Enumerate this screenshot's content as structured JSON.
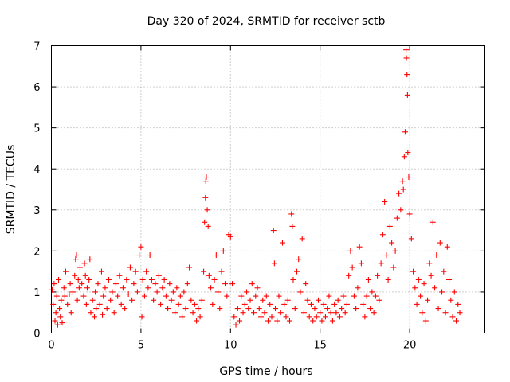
{
  "colors": {
    "series": "#ff0000",
    "grid": "#a0a0a0",
    "frame": "#000000"
  },
  "chart_data": {
    "type": "scatter",
    "title": "Day 320 of 2024, SRMTID for receiver sctb",
    "xlabel": "GPS time / hours",
    "ylabel": "SRMTID / TECUs",
    "xlim": [
      0,
      24.2
    ],
    "ylim": [
      0,
      7
    ],
    "x_ticks": [
      0,
      5,
      10,
      15,
      20
    ],
    "y_ticks": [
      0,
      1,
      2,
      3,
      4,
      5,
      6,
      7
    ],
    "x_tick_labels": [
      "0",
      "5",
      "10",
      "15",
      "20"
    ],
    "y_tick_labels": [
      "0",
      "1",
      "2",
      "3",
      "4",
      "5",
      "6",
      "7"
    ],
    "grid": true,
    "marker": "plus",
    "series": [
      {
        "name": "sctb",
        "points": [
          [
            0.05,
            1.05
          ],
          [
            0.1,
            0.7
          ],
          [
            0.15,
            1.2
          ],
          [
            0.2,
            0.3
          ],
          [
            0.25,
            0.5
          ],
          [
            0.3,
            0.9
          ],
          [
            0.35,
            0.2
          ],
          [
            0.4,
            1.3
          ],
          [
            0.45,
            0.6
          ],
          [
            0.5,
            0.4
          ],
          [
            0.55,
            0.8
          ],
          [
            0.6,
            0.25
          ],
          [
            0.7,
            1.1
          ],
          [
            0.75,
            0.9
          ],
          [
            0.8,
            1.5
          ],
          [
            0.9,
            0.7
          ],
          [
            1.0,
            0.95
          ],
          [
            1.05,
            1.2
          ],
          [
            1.1,
            0.5
          ],
          [
            1.2,
            1.0
          ],
          [
            1.3,
            1.4
          ],
          [
            1.35,
            1.8
          ],
          [
            1.4,
            1.9
          ],
          [
            1.45,
            0.8
          ],
          [
            1.5,
            1.3
          ],
          [
            1.55,
            1.1
          ],
          [
            1.6,
            1.6
          ],
          [
            1.7,
            1.2
          ],
          [
            1.8,
            0.9
          ],
          [
            1.85,
            1.7
          ],
          [
            1.9,
            1.4
          ],
          [
            1.95,
            0.7
          ],
          [
            2.0,
            1.1
          ],
          [
            2.1,
            1.3
          ],
          [
            2.15,
            1.8
          ],
          [
            2.2,
            0.5
          ],
          [
            2.3,
            0.8
          ],
          [
            2.4,
            0.4
          ],
          [
            2.45,
            1.0
          ],
          [
            2.5,
            0.6
          ],
          [
            2.6,
            1.2
          ],
          [
            2.7,
            0.7
          ],
          [
            2.8,
            1.5
          ],
          [
            2.85,
            0.45
          ],
          [
            2.9,
            0.9
          ],
          [
            3.0,
            1.1
          ],
          [
            3.1,
            0.6
          ],
          [
            3.2,
            1.3
          ],
          [
            3.3,
            0.8
          ],
          [
            3.4,
            1.0
          ],
          [
            3.5,
            0.5
          ],
          [
            3.6,
            1.2
          ],
          [
            3.7,
            0.9
          ],
          [
            3.8,
            1.4
          ],
          [
            3.9,
            0.7
          ],
          [
            4.0,
            1.1
          ],
          [
            4.1,
            0.6
          ],
          [
            4.2,
            1.3
          ],
          [
            4.3,
            0.95
          ],
          [
            4.4,
            1.6
          ],
          [
            4.5,
            0.8
          ],
          [
            4.6,
            1.2
          ],
          [
            4.7,
            1.5
          ],
          [
            4.8,
            1.0
          ],
          [
            4.9,
            1.9
          ],
          [
            5.0,
            2.1
          ],
          [
            5.05,
            0.4
          ],
          [
            5.1,
            1.3
          ],
          [
            5.2,
            0.9
          ],
          [
            5.3,
            1.5
          ],
          [
            5.4,
            1.1
          ],
          [
            5.5,
            1.9
          ],
          [
            5.6,
            1.3
          ],
          [
            5.7,
            0.8
          ],
          [
            5.8,
            1.2
          ],
          [
            5.9,
            1.0
          ],
          [
            6.0,
            1.4
          ],
          [
            6.1,
            0.7
          ],
          [
            6.2,
            1.1
          ],
          [
            6.3,
            1.3
          ],
          [
            6.4,
            0.9
          ],
          [
            6.5,
            0.6
          ],
          [
            6.6,
            1.2
          ],
          [
            6.7,
            0.8
          ],
          [
            6.8,
            1.0
          ],
          [
            6.9,
            0.5
          ],
          [
            7.0,
            1.1
          ],
          [
            7.1,
            0.7
          ],
          [
            7.2,
            0.9
          ],
          [
            7.3,
            0.4
          ],
          [
            7.4,
            1.0
          ],
          [
            7.5,
            0.6
          ],
          [
            7.6,
            1.2
          ],
          [
            7.7,
            1.6
          ],
          [
            7.8,
            0.8
          ],
          [
            7.9,
            0.5
          ],
          [
            8.0,
            0.7
          ],
          [
            8.1,
            0.3
          ],
          [
            8.2,
            0.6
          ],
          [
            8.3,
            0.4
          ],
          [
            8.4,
            0.8
          ],
          [
            8.5,
            1.5
          ],
          [
            8.55,
            2.7
          ],
          [
            8.6,
            3.3
          ],
          [
            8.62,
            3.7
          ],
          [
            8.65,
            3.8
          ],
          [
            8.7,
            3.0
          ],
          [
            8.75,
            2.6
          ],
          [
            8.8,
            1.4
          ],
          [
            8.9,
            1.1
          ],
          [
            9.0,
            0.7
          ],
          [
            9.1,
            1.3
          ],
          [
            9.2,
            1.9
          ],
          [
            9.3,
            1.0
          ],
          [
            9.4,
            0.6
          ],
          [
            9.5,
            1.5
          ],
          [
            9.6,
            2.0
          ],
          [
            9.7,
            1.2
          ],
          [
            9.8,
            0.9
          ],
          [
            9.9,
            2.4
          ],
          [
            10.0,
            2.35
          ],
          [
            10.1,
            1.2
          ],
          [
            10.2,
            0.4
          ],
          [
            10.3,
            0.2
          ],
          [
            10.4,
            0.6
          ],
          [
            10.5,
            0.3
          ],
          [
            10.6,
            0.9
          ],
          [
            10.7,
            0.5
          ],
          [
            10.8,
            0.7
          ],
          [
            10.9,
            1.0
          ],
          [
            11.0,
            0.6
          ],
          [
            11.1,
            0.8
          ],
          [
            11.2,
            1.2
          ],
          [
            11.3,
            0.5
          ],
          [
            11.4,
            0.9
          ],
          [
            11.5,
            1.1
          ],
          [
            11.6,
            0.6
          ],
          [
            11.7,
            0.4
          ],
          [
            11.8,
            0.8
          ],
          [
            11.9,
            0.5
          ],
          [
            12.0,
            0.9
          ],
          [
            12.1,
            0.3
          ],
          [
            12.2,
            0.7
          ],
          [
            12.3,
            0.4
          ],
          [
            12.4,
            2.5
          ],
          [
            12.45,
            1.7
          ],
          [
            12.5,
            0.6
          ],
          [
            12.6,
            0.3
          ],
          [
            12.7,
            0.9
          ],
          [
            12.8,
            0.5
          ],
          [
            12.9,
            2.2
          ],
          [
            13.0,
            0.7
          ],
          [
            13.1,
            0.4
          ],
          [
            13.2,
            0.8
          ],
          [
            13.3,
            0.3
          ],
          [
            13.4,
            2.9
          ],
          [
            13.45,
            2.6
          ],
          [
            13.5,
            1.3
          ],
          [
            13.6,
            0.6
          ],
          [
            13.7,
            1.5
          ],
          [
            13.8,
            1.8
          ],
          [
            13.9,
            1.0
          ],
          [
            14.0,
            2.3
          ],
          [
            14.1,
            0.5
          ],
          [
            14.2,
            1.2
          ],
          [
            14.3,
            0.8
          ],
          [
            14.4,
            0.4
          ],
          [
            14.5,
            0.7
          ],
          [
            14.6,
            0.3
          ],
          [
            14.7,
            0.6
          ],
          [
            14.8,
            0.4
          ],
          [
            14.9,
            0.8
          ],
          [
            15.0,
            0.5
          ],
          [
            15.1,
            0.3
          ],
          [
            15.2,
            0.7
          ],
          [
            15.3,
            0.4
          ],
          [
            15.4,
            0.6
          ],
          [
            15.5,
            0.9
          ],
          [
            15.6,
            0.5
          ],
          [
            15.7,
            0.3
          ],
          [
            15.8,
            0.7
          ],
          [
            15.9,
            0.5
          ],
          [
            16.0,
            0.8
          ],
          [
            16.1,
            0.4
          ],
          [
            16.2,
            0.6
          ],
          [
            16.3,
            0.9
          ],
          [
            16.4,
            0.5
          ],
          [
            16.5,
            0.7
          ],
          [
            16.6,
            1.4
          ],
          [
            16.7,
            2.0
          ],
          [
            16.8,
            1.6
          ],
          [
            16.9,
            0.9
          ],
          [
            17.0,
            0.6
          ],
          [
            17.1,
            1.1
          ],
          [
            17.2,
            2.1
          ],
          [
            17.3,
            1.7
          ],
          [
            17.4,
            0.7
          ],
          [
            17.5,
            0.4
          ],
          [
            17.6,
            0.9
          ],
          [
            17.7,
            1.3
          ],
          [
            17.8,
            0.6
          ],
          [
            17.9,
            1.0
          ],
          [
            18.0,
            0.5
          ],
          [
            18.1,
            0.9
          ],
          [
            18.2,
            1.4
          ],
          [
            18.3,
            0.8
          ],
          [
            18.4,
            1.7
          ],
          [
            18.5,
            2.4
          ],
          [
            18.6,
            3.2
          ],
          [
            18.7,
            1.9
          ],
          [
            18.8,
            1.3
          ],
          [
            18.9,
            2.6
          ],
          [
            19.0,
            2.2
          ],
          [
            19.1,
            1.6
          ],
          [
            19.2,
            2.0
          ],
          [
            19.3,
            2.8
          ],
          [
            19.4,
            3.4
          ],
          [
            19.5,
            3.0
          ],
          [
            19.6,
            3.7
          ],
          [
            19.65,
            3.5
          ],
          [
            19.7,
            4.3
          ],
          [
            19.75,
            4.9
          ],
          [
            19.8,
            6.9
          ],
          [
            19.82,
            6.7
          ],
          [
            19.85,
            6.3
          ],
          [
            19.88,
            5.8
          ],
          [
            19.9,
            4.4
          ],
          [
            19.95,
            3.8
          ],
          [
            20.0,
            2.9
          ],
          [
            20.1,
            2.3
          ],
          [
            20.2,
            1.5
          ],
          [
            20.3,
            1.1
          ],
          [
            20.4,
            0.7
          ],
          [
            20.5,
            1.3
          ],
          [
            20.6,
            0.9
          ],
          [
            20.7,
            0.5
          ],
          [
            20.8,
            1.2
          ],
          [
            20.9,
            0.3
          ],
          [
            21.0,
            0.8
          ],
          [
            21.1,
            1.7
          ],
          [
            21.2,
            1.4
          ],
          [
            21.3,
            2.7
          ],
          [
            21.4,
            1.1
          ],
          [
            21.5,
            1.9
          ],
          [
            21.6,
            0.6
          ],
          [
            21.7,
            2.2
          ],
          [
            21.8,
            1.0
          ],
          [
            21.9,
            1.5
          ],
          [
            22.0,
            0.5
          ],
          [
            22.1,
            2.1
          ],
          [
            22.2,
            1.3
          ],
          [
            22.3,
            0.8
          ],
          [
            22.4,
            0.4
          ],
          [
            22.5,
            1.0
          ],
          [
            22.6,
            0.3
          ],
          [
            22.7,
            0.7
          ],
          [
            22.8,
            0.5
          ]
        ]
      }
    ]
  }
}
